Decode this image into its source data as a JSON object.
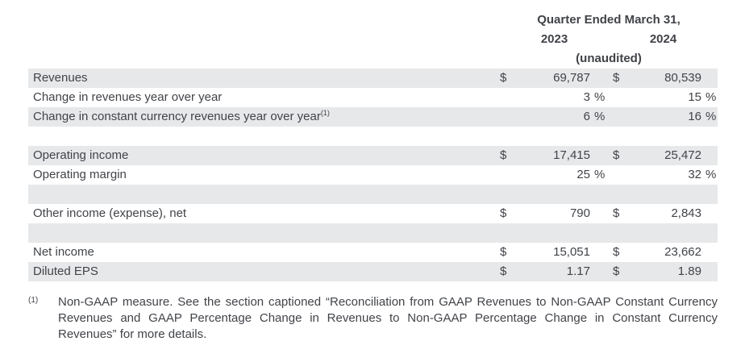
{
  "header": {
    "title": "Quarter Ended March 31,",
    "year_left": "2023",
    "year_right": "2024",
    "unaudited": "(unaudited)"
  },
  "table": {
    "rows": [
      {
        "label": "Revenues",
        "sup": "",
        "shaded": true,
        "spacer": false,
        "d1": "$",
        "v1": "69,787",
        "p1": "",
        "d2": "$",
        "v2": "80,539",
        "p2": ""
      },
      {
        "label": "Change in revenues year over year",
        "sup": "",
        "shaded": false,
        "spacer": false,
        "d1": "",
        "v1": "3",
        "p1": "%",
        "d2": "",
        "v2": "15",
        "p2": "%"
      },
      {
        "label": "Change in constant currency revenues year over year",
        "sup": "(1)",
        "shaded": true,
        "spacer": false,
        "d1": "",
        "v1": "6",
        "p1": "%",
        "d2": "",
        "v2": "16",
        "p2": "%"
      },
      {
        "label": "",
        "sup": "",
        "shaded": false,
        "spacer": true,
        "d1": "",
        "v1": "",
        "p1": "",
        "d2": "",
        "v2": "",
        "p2": ""
      },
      {
        "label": "Operating income",
        "sup": "",
        "shaded": true,
        "spacer": false,
        "d1": "$",
        "v1": "17,415",
        "p1": "",
        "d2": "$",
        "v2": "25,472",
        "p2": ""
      },
      {
        "label": "Operating margin",
        "sup": "",
        "shaded": false,
        "spacer": false,
        "d1": "",
        "v1": "25",
        "p1": "%",
        "d2": "",
        "v2": "32",
        "p2": "%"
      },
      {
        "label": "",
        "sup": "",
        "shaded": true,
        "spacer": true,
        "d1": "",
        "v1": "",
        "p1": "",
        "d2": "",
        "v2": "",
        "p2": ""
      },
      {
        "label": "Other income (expense), net",
        "sup": "",
        "shaded": false,
        "spacer": false,
        "d1": "$",
        "v1": "790",
        "p1": "",
        "d2": "$",
        "v2": "2,843",
        "p2": ""
      },
      {
        "label": "",
        "sup": "",
        "shaded": true,
        "spacer": true,
        "d1": "",
        "v1": "",
        "p1": "",
        "d2": "",
        "v2": "",
        "p2": ""
      },
      {
        "label": "Net income",
        "sup": "",
        "shaded": false,
        "spacer": false,
        "d1": "$",
        "v1": "15,051",
        "p1": "",
        "d2": "$",
        "v2": "23,662",
        "p2": ""
      },
      {
        "label": "Diluted EPS",
        "sup": "",
        "shaded": true,
        "spacer": false,
        "d1": "$",
        "v1": "1.17",
        "p1": "",
        "d2": "$",
        "v2": "1.89",
        "p2": ""
      }
    ]
  },
  "footnote": {
    "marker": "(1)",
    "text": "Non-GAAP measure. See the section captioned “Reconciliation from GAAP Revenues to Non-GAAP Constant Currency Revenues and GAAP Percentage Change in Revenues to Non-GAAP Percentage Change in Constant Currency Revenues” for more details."
  },
  "colors": {
    "row_shade": "#e7e8ea",
    "text": "#414348",
    "background": "#ffffff"
  }
}
